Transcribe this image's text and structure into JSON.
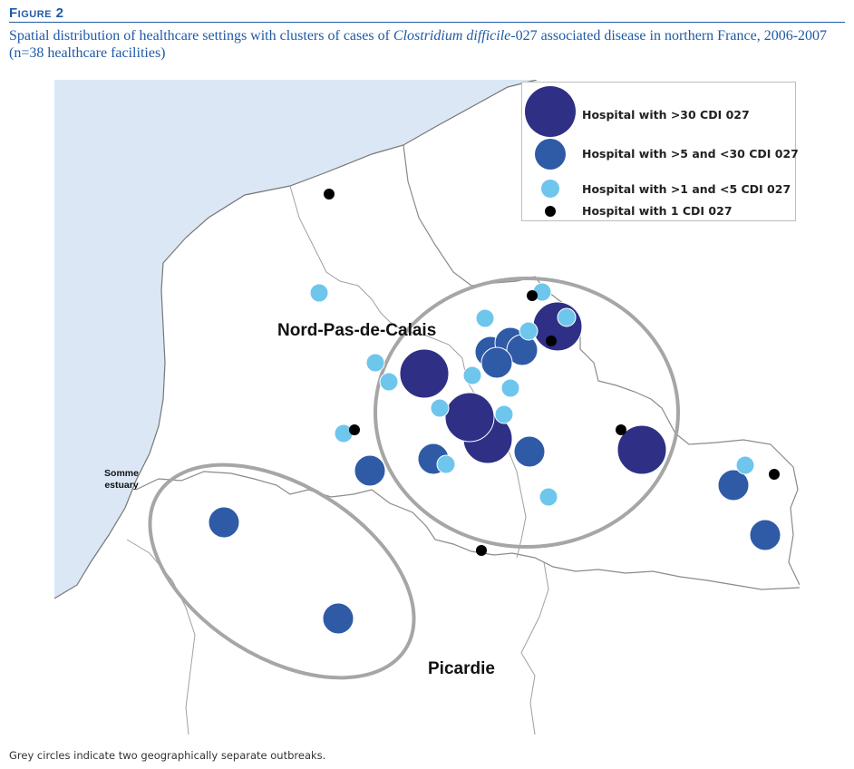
{
  "figure_label": "Figure 2",
  "caption_pre": "Spatial distribution of healthcare settings with clusters of cases of ",
  "caption_italic": "Clostridium difficile",
  "caption_post": "-027 associated disease in northern France, 2006-2007 (n=38 healthcare facilities)",
  "legend": [
    {
      "label": "Hospital with >30 CDI 027",
      "color": "#2e2f85"
    },
    {
      "label": "Hospital with >5 and <30 CDI 027",
      "color": "#2f5aa6"
    },
    {
      "label": "Hospital with >1 and <5 CDI 027",
      "color": "#6ec6ec"
    },
    {
      "label": "Hospital with 1 CDI 027",
      "color": "#000000"
    }
  ],
  "regions": {
    "north": "Nord-Pas-de-Calais",
    "south": "Picardie",
    "estuary_line1": "Somme",
    "estuary_line2": "estuary"
  },
  "colors": {
    "sea": "#dbe7f5",
    "border": "#888888",
    "outbreak_ring": "#a6a6a6"
  },
  "footer": "Grey circles indicate two geographically separate outbreaks."
}
